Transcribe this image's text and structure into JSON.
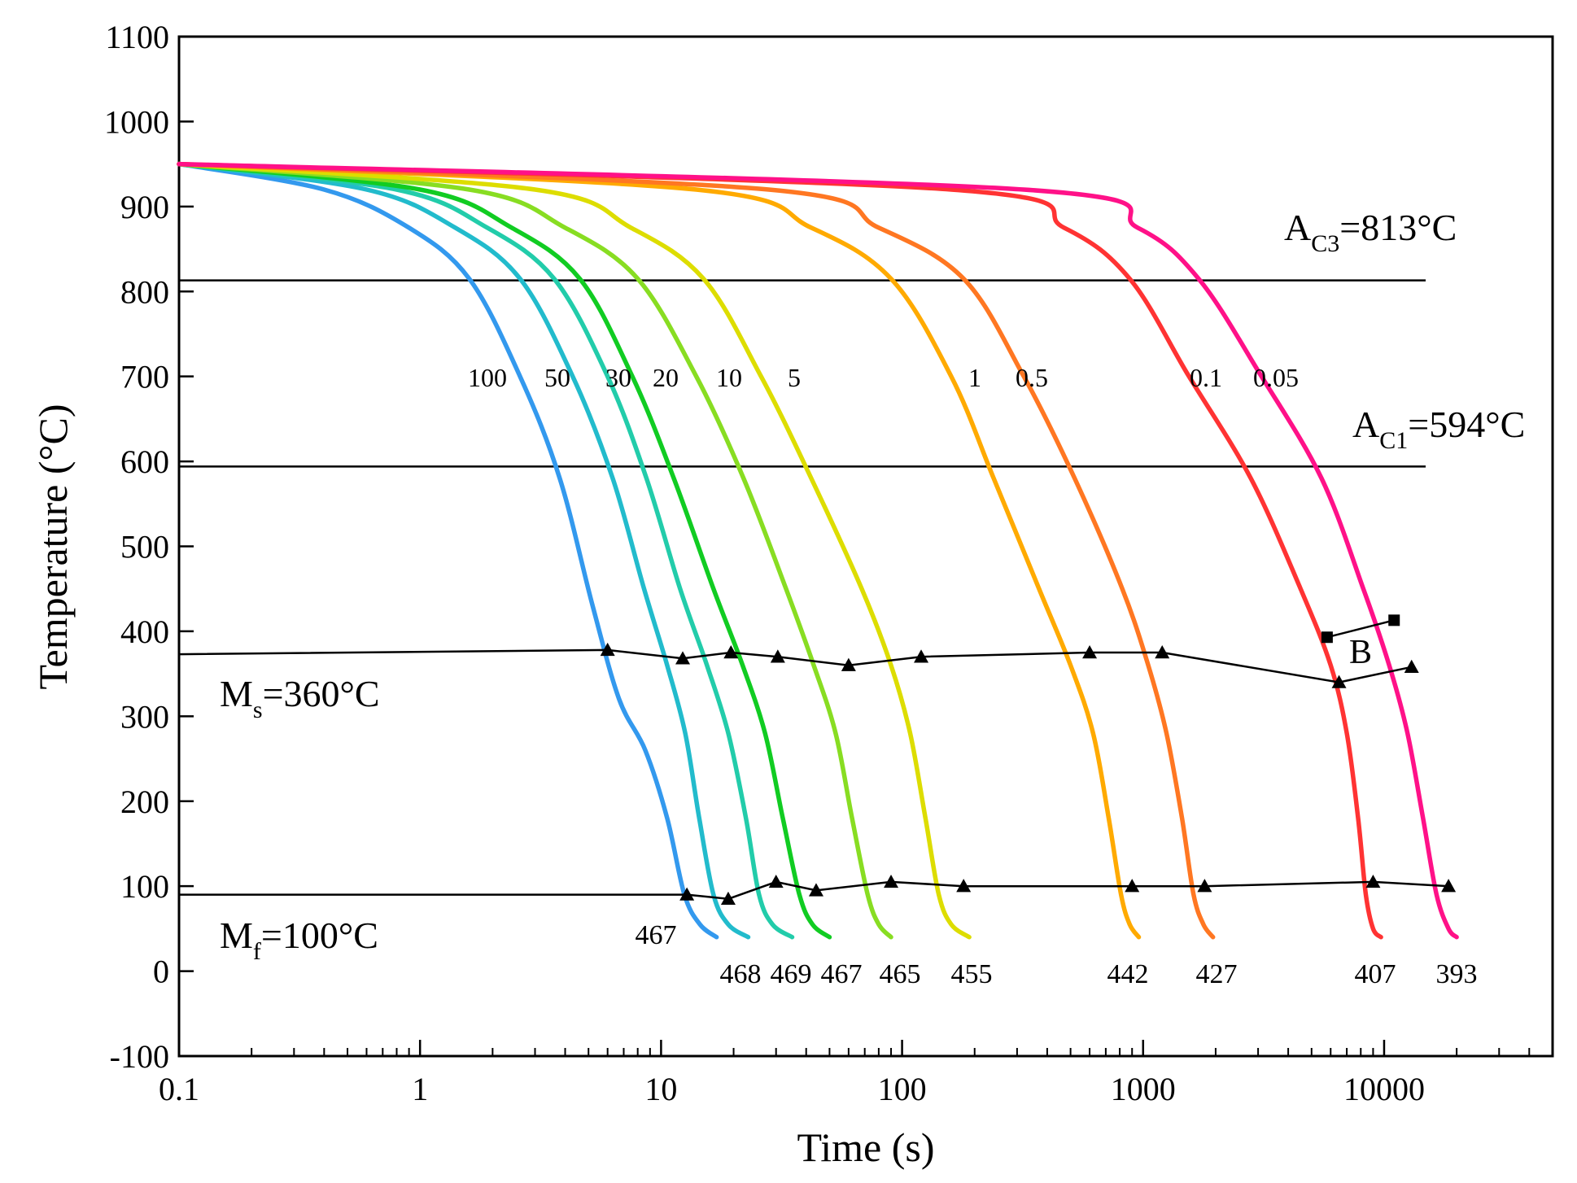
{
  "chart_data": {
    "type": "line",
    "title": "",
    "xlabel": "Time (s)",
    "ylabel": "Temperature (°C)",
    "xscale": "log",
    "xlim": [
      0.1,
      50000
    ],
    "ylim": [
      -100,
      1100
    ],
    "x_ticks": [
      {
        "value": 0.1,
        "label": "0.1"
      },
      {
        "value": 1,
        "label": "1"
      },
      {
        "value": 10,
        "label": "10"
      },
      {
        "value": 100,
        "label": "100"
      },
      {
        "value": 1000,
        "label": "1000"
      },
      {
        "value": 10000,
        "label": "10000"
      }
    ],
    "y_ticks": [
      {
        "value": 1100,
        "label": "1100"
      },
      {
        "value": 1000,
        "label": "1000"
      },
      {
        "value": 900,
        "label": "900"
      },
      {
        "value": 800,
        "label": "800"
      },
      {
        "value": 700,
        "label": "700"
      },
      {
        "value": 600,
        "label": "600"
      },
      {
        "value": 500,
        "label": "500"
      },
      {
        "value": 400,
        "label": "400"
      },
      {
        "value": 300,
        "label": "300"
      },
      {
        "value": 200,
        "label": "200"
      },
      {
        "value": 100,
        "label": "100"
      },
      {
        "value": 0,
        "label": "0"
      },
      {
        "value": -100,
        "label": "-100"
      }
    ],
    "start_temperature": 950,
    "series": [
      {
        "name": "100",
        "color": "#3399ee",
        "x": [
          0.1,
          0.4,
          0.9,
          1.6,
          2.6,
          3.8,
          5.2,
          6.7,
          8.6,
          10.6,
          12.5,
          14.5,
          17
        ],
        "y": [
          950,
          920,
          875,
          815,
          700,
          580,
          430,
          320,
          260,
          180,
          90,
          55,
          40
        ],
        "hardness": "467"
      },
      {
        "name": "50",
        "color": "#22bbcc",
        "x": [
          0.1,
          0.6,
          1.4,
          2.6,
          4.3,
          6.3,
          8.5,
          10.6,
          12.6,
          14.4,
          16.5,
          19,
          23
        ],
        "y": [
          950,
          920,
          875,
          815,
          700,
          580,
          450,
          360,
          280,
          180,
          90,
          55,
          40
        ],
        "hardness": "468"
      },
      {
        "name": "30",
        "color": "#22ccaa",
        "x": [
          0.1,
          0.8,
          1.9,
          3.6,
          6.0,
          8.7,
          12,
          15.5,
          19,
          22.5,
          25.5,
          29,
          35
        ],
        "y": [
          950,
          920,
          875,
          815,
          700,
          580,
          450,
          360,
          280,
          180,
          90,
          55,
          40
        ],
        "hardness": "469"
      },
      {
        "name": "20",
        "color": "#11cc22",
        "x": [
          0.1,
          1.0,
          2.4,
          4.6,
          7.6,
          11.3,
          16.5,
          21.8,
          27,
          32,
          37.5,
          42.5,
          50
        ],
        "y": [
          950,
          920,
          875,
          815,
          700,
          580,
          450,
          360,
          280,
          180,
          90,
          55,
          40
        ],
        "hardness": "467"
      },
      {
        "name": "10",
        "color": "#88dd22",
        "x": [
          0.1,
          1.6,
          4,
          8,
          14,
          22,
          33,
          43,
          53,
          62,
          72,
          80,
          90
        ],
        "y": [
          950,
          920,
          875,
          815,
          700,
          580,
          450,
          360,
          280,
          180,
          90,
          55,
          40
        ],
        "hardness": "465"
      },
      {
        "name": "5",
        "color": "#dddd00",
        "x": [
          0.1,
          3,
          7.5,
          15,
          26,
          42,
          68,
          90,
          108,
          125,
          142,
          160,
          190
        ],
        "y": [
          950,
          920,
          875,
          815,
          700,
          580,
          450,
          360,
          280,
          180,
          90,
          55,
          40
        ],
        "hardness": "455"
      },
      {
        "name": "1",
        "color": "#ffaa00",
        "x": [
          0.1,
          14,
          42,
          90,
          160,
          240,
          370,
          500,
          620,
          720,
          810,
          880,
          960
        ],
        "y": [
          950,
          920,
          875,
          815,
          700,
          580,
          450,
          360,
          280,
          180,
          90,
          55,
          40
        ],
        "hardness": "442"
      },
      {
        "name": "0.5",
        "color": "#ff7722",
        "x": [
          0.1,
          28,
          80,
          180,
          320,
          520,
          820,
          1050,
          1250,
          1450,
          1620,
          1780,
          1950
        ],
        "y": [
          950,
          920,
          875,
          815,
          700,
          580,
          450,
          360,
          280,
          180,
          90,
          55,
          40
        ],
        "hardness": "427"
      },
      {
        "name": "0.1",
        "color": "#ff3333",
        "x": [
          0.1,
          160,
          470,
          880,
          1550,
          2800,
          4500,
          6000,
          7000,
          7800,
          8400,
          9000,
          9700
        ],
        "y": [
          950,
          920,
          875,
          815,
          700,
          580,
          450,
          360,
          280,
          180,
          90,
          50,
          40
        ],
        "hardness": "407"
      },
      {
        "name": "0.05",
        "color": "#ff1188",
        "x": [
          0.1,
          320,
          950,
          1700,
          3100,
          5500,
          8200,
          10500,
          12500,
          14500,
          16500,
          18500,
          20000
        ],
        "y": [
          950,
          920,
          875,
          815,
          700,
          580,
          450,
          360,
          280,
          180,
          90,
          50,
          40
        ],
        "hardness": "393"
      }
    ],
    "reference_lines": [
      {
        "name": "Ac3",
        "value": 813,
        "prefix": "A",
        "sub": "C3",
        "suffix": "=813°C"
      },
      {
        "name": "Ac1",
        "value": 594,
        "prefix": "A",
        "sub": "C1",
        "suffix": "=594°C"
      }
    ],
    "ms_line": {
      "label_prefix": "M",
      "label_sub": "s",
      "label_suffix": "=360°C",
      "x": [
        0.1,
        6,
        12.3,
        19.5,
        30.5,
        60,
        120,
        600,
        1200,
        6500,
        13000
      ],
      "y": [
        373,
        378,
        368,
        375,
        370,
        360,
        370,
        375,
        375,
        340,
        358
      ],
      "marker_x": [
        6,
        12.3,
        19.5,
        30.5,
        60,
        120,
        600,
        1200,
        6500,
        13000
      ],
      "marker_y": [
        378,
        368,
        375,
        370,
        360,
        370,
        375,
        375,
        340,
        358
      ]
    },
    "mf_line": {
      "label_prefix": "M",
      "label_sub": "f",
      "label_suffix": "=100°C",
      "x": [
        0.1,
        12.8,
        19,
        30,
        44,
        90,
        180,
        900,
        1800,
        9000,
        18500
      ],
      "y": [
        90,
        90,
        85,
        105,
        95,
        105,
        100,
        100,
        100,
        105,
        100
      ],
      "marker_x": [
        12.8,
        19,
        30,
        44,
        90,
        180,
        900,
        1800,
        9000,
        18500
      ],
      "marker_y": [
        90,
        85,
        105,
        95,
        105,
        100,
        100,
        100,
        105,
        100
      ]
    },
    "bainite_region": {
      "label": "B",
      "square_x": [
        5800,
        11000
      ],
      "square_y": [
        393,
        413
      ]
    }
  }
}
